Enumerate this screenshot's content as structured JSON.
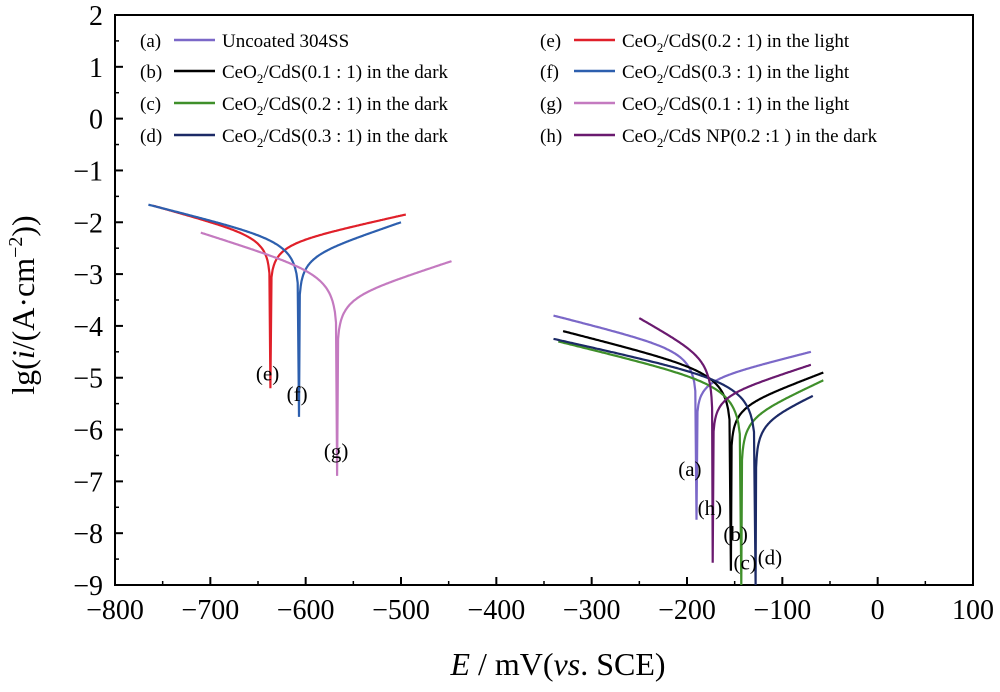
{
  "chart_data": {
    "type": "line",
    "title": "",
    "xlabel_italic": "E",
    "xlabel_rest": " / mV(",
    "xlabel_vs": "vs",
    "xlabel_tail": ". SCE)",
    "ylabel_pre": "lg(",
    "ylabel_italic": "i",
    "ylabel_mid": "/(A·cm",
    "ylabel_sup": "−2",
    "ylabel_post": "))",
    "xlim": [
      -800,
      100
    ],
    "ylim": [
      -9,
      2
    ],
    "x_ticks": [
      -800,
      -700,
      -600,
      -500,
      -400,
      -300,
      -200,
      -100,
      0,
      100
    ],
    "x_tick_labels": [
      "−800",
      "−700",
      "−600",
      "−500",
      "−400",
      "−300",
      "−200",
      "−100",
      "0",
      "100"
    ],
    "y_ticks": [
      2,
      1,
      0,
      -1,
      -2,
      -3,
      -4,
      -5,
      -6,
      -7,
      -8,
      -9
    ],
    "y_tick_labels": [
      "2",
      "1",
      "0",
      "−1",
      "−2",
      "−3",
      "−4",
      "−5",
      "−6",
      "−7",
      "−8",
      "−9"
    ],
    "legend_position": "top",
    "series": [
      {
        "key": "a",
        "legend": [
          "(a)",
          "Uncoated  304SS"
        ],
        "color": "#7b68c8",
        "ecorr": -190,
        "icorr": -7.0,
        "xstart": -340,
        "ystart": -3.8,
        "xend": -70,
        "yend": -4.5,
        "label": "(a)"
      },
      {
        "key": "b",
        "legend": [
          "(b)",
          "CeO",
          "2",
          "/CdS(0.1 : 1) in the dark"
        ],
        "color": "#000000",
        "ecorr": -154,
        "icorr": -7.9,
        "xstart": -330,
        "ystart": -4.1,
        "xend": -57,
        "yend": -4.9,
        "label": "(b)"
      },
      {
        "key": "c",
        "legend": [
          "(c)",
          "CeO",
          "2",
          "/CdS(0.2 : 1) in the dark"
        ],
        "color": "#3f8f2a",
        "ecorr": -143,
        "icorr": -8.3,
        "xstart": -335,
        "ystart": -4.3,
        "xend": -57,
        "yend": -5.05,
        "label": "(c)"
      },
      {
        "key": "d",
        "legend": [
          "(d)",
          "CeO",
          "2",
          "/CdS(0.3 : 1) in the dark"
        ],
        "color": "#1c2a66",
        "ecorr": -128,
        "icorr": -8.3,
        "xstart": -340,
        "ystart": -4.25,
        "xend": -68,
        "yend": -5.35,
        "label": "(d)"
      },
      {
        "key": "e",
        "legend": [
          "(e)",
          "CeO",
          "2",
          "/CdS(0.2 : 1) in the light"
        ],
        "color": "#e0202a",
        "ecorr": -637,
        "icorr": -4.5,
        "xstart": -760,
        "ystart": -1.68,
        "xend": -495,
        "yend": -1.85,
        "label": "(e)"
      },
      {
        "key": "f",
        "legend": [
          "(f)",
          "CeO",
          "2",
          "/CdS(0.3 : 1) in the light"
        ],
        "color": "#2d5fae",
        "ecorr": -607,
        "icorr": -5.0,
        "xstart": -765,
        "ystart": -1.66,
        "xend": -500,
        "yend": -2.0,
        "label": "(f)"
      },
      {
        "key": "g",
        "legend": [
          "(g)",
          "CeO",
          "2",
          "/CdS(0.1 : 1) in the light"
        ],
        "color": "#c47ac0",
        "ecorr": -567,
        "icorr": -6.0,
        "xstart": -710,
        "ystart": -2.2,
        "xend": -447,
        "yend": -2.75,
        "label": "(g)"
      },
      {
        "key": "h",
        "legend": [
          "(h)",
          "CeO",
          "2",
          "/CdS NP(0.2 :1 ) in the dark"
        ],
        "color": "#6a1a6f",
        "ecorr": -173,
        "icorr": -7.5,
        "xstart": -250,
        "ystart": -3.85,
        "xend": -70,
        "yend": -4.75,
        "label": "(h)"
      }
    ]
  }
}
